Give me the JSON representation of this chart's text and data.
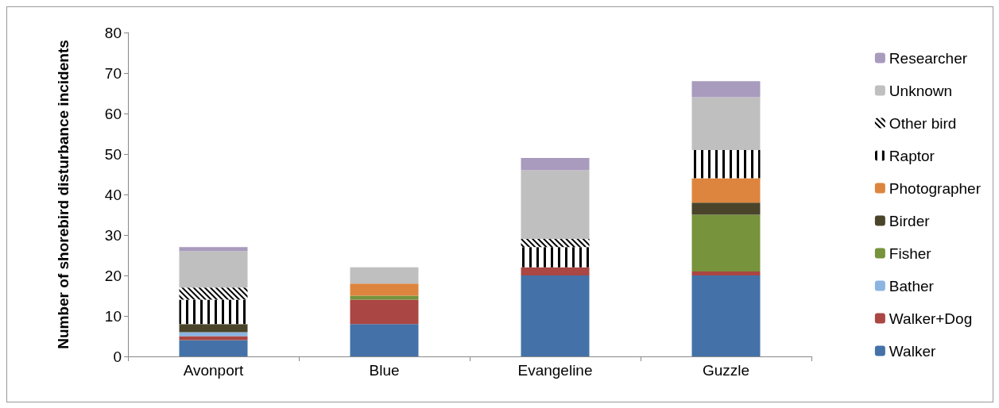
{
  "chart_data": {
    "type": "bar",
    "stacked": true,
    "ylabel": "Number of shorebird disturbance incidents",
    "categories": [
      "Avonport",
      "Blue",
      "Evangeline",
      "Guzzle"
    ],
    "ylim": [
      0,
      80
    ],
    "yticks": [
      0,
      10,
      20,
      30,
      40,
      50,
      60,
      70,
      80
    ],
    "grid": false,
    "legend": "right",
    "series": [
      {
        "name": "Walker",
        "color": "#4472a8",
        "values": [
          4,
          8,
          20,
          20
        ]
      },
      {
        "name": "Walker+Dog",
        "color": "#aa4643",
        "values": [
          1,
          6,
          2,
          1
        ]
      },
      {
        "name": "Bather",
        "color": "#8cb4e2",
        "values": [
          1,
          0,
          0,
          0
        ]
      },
      {
        "name": "Fisher",
        "color": "#77933c",
        "values": [
          0,
          1,
          0,
          14
        ]
      },
      {
        "name": "Birder",
        "color": "#4a452a",
        "values": [
          2,
          0,
          0,
          3
        ]
      },
      {
        "name": "Photographer",
        "color": "#dd853e",
        "values": [
          0,
          3,
          0,
          6
        ]
      },
      {
        "name": "Raptor",
        "color": "#000000",
        "values": [
          6,
          0,
          5,
          7
        ]
      },
      {
        "name": "Other bird",
        "color": "#000001",
        "values": [
          3,
          0,
          2,
          0
        ]
      },
      {
        "name": "Unknown",
        "color": "#bfbfbf",
        "values": [
          9,
          4,
          17,
          13
        ]
      },
      {
        "name": "Researcher",
        "color": "#a99bbd",
        "values": [
          1,
          0,
          3,
          4
        ]
      }
    ]
  }
}
